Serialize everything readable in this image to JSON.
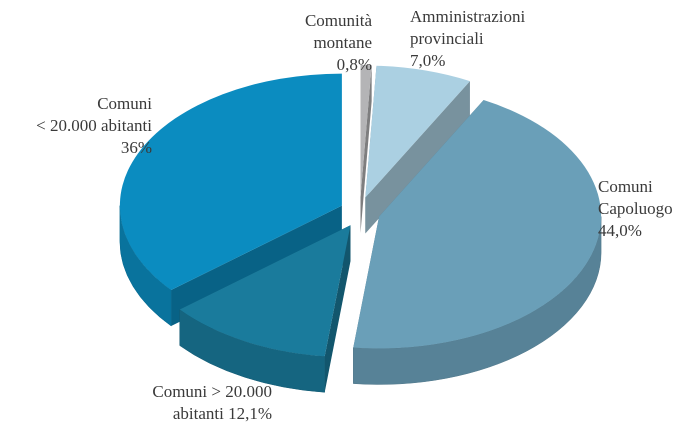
{
  "chart_data": {
    "type": "pie",
    "categories": [
      "Comunità montane",
      "Amministrazioni provinciali",
      "Comuni Capoluogo",
      "Comuni > 20.000 abitanti",
      "Comuni < 20.000 abitanti"
    ],
    "values": [
      0.8,
      7.0,
      44.0,
      12.1,
      36
    ],
    "value_labels": [
      "0,8%",
      "7,0%",
      "44,0%",
      "12,1%",
      "36%"
    ],
    "colors": [
      "#b4b4b6",
      "#abd0e2",
      "#6a9fb8",
      "#1a7b9c",
      "#0b8cc0"
    ]
  }
}
